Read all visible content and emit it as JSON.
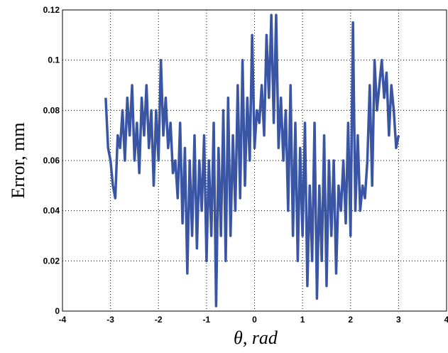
{
  "chart_data": {
    "type": "line",
    "xlabel": "θ, rad",
    "ylabel": "Error, mm",
    "xlim": [
      -4,
      4
    ],
    "xticks": [
      -4,
      -3,
      -2,
      -1,
      0,
      1,
      2,
      3,
      4
    ],
    "ylim": [
      0,
      0.12
    ],
    "yticks": [
      0,
      0.02,
      0.04,
      0.06,
      0.08,
      0.1,
      0.12
    ],
    "grid": true,
    "x": [
      -3.1,
      -3.05,
      -3,
      -2.95,
      -2.9,
      -2.85,
      -2.8,
      -2.75,
      -2.7,
      -2.65,
      -2.6,
      -2.55,
      -2.5,
      -2.45,
      -2.4,
      -2.35,
      -2.3,
      -2.25,
      -2.2,
      -2.15,
      -2.1,
      -2.05,
      -2,
      -1.95,
      -1.9,
      -1.85,
      -1.8,
      -1.75,
      -1.7,
      -1.65,
      -1.6,
      -1.55,
      -1.5,
      -1.45,
      -1.4,
      -1.35,
      -1.3,
      -1.25,
      -1.2,
      -1.15,
      -1.1,
      -1.05,
      -1,
      -0.95,
      -0.9,
      -0.85,
      -0.8,
      -0.75,
      -0.7,
      -0.65,
      -0.6,
      -0.55,
      -0.5,
      -0.45,
      -0.4,
      -0.35,
      -0.3,
      -0.25,
      -0.2,
      -0.15,
      -0.1,
      -0.05,
      0,
      0.05,
      0.1,
      0.15,
      0.2,
      0.25,
      0.3,
      0.35,
      0.4,
      0.45,
      0.5,
      0.55,
      0.6,
      0.65,
      0.7,
      0.75,
      0.8,
      0.85,
      0.9,
      0.95,
      1,
      1.05,
      1.1,
      1.15,
      1.2,
      1.25,
      1.3,
      1.35,
      1.4,
      1.45,
      1.5,
      1.55,
      1.6,
      1.65,
      1.7,
      1.75,
      1.8,
      1.85,
      1.9,
      1.95,
      2,
      2.05,
      2.1,
      2.15,
      2.2,
      2.25,
      2.3,
      2.35,
      2.4,
      2.45,
      2.5,
      2.55,
      2.6,
      2.65,
      2.7,
      2.75,
      2.8,
      2.85,
      2.9,
      2.95,
      3
    ],
    "series": [
      {
        "color": "#3a55a4",
        "values": [
          0.085,
          0.065,
          0.06,
          0.05,
          0.045,
          0.07,
          0.065,
          0.08,
          0.06,
          0.085,
          0.07,
          0.09,
          0.06,
          0.075,
          0.055,
          0.085,
          0.07,
          0.09,
          0.065,
          0.08,
          0.05,
          0.08,
          0.06,
          0.1,
          0.07,
          0.085,
          0.065,
          0.075,
          0.055,
          0.06,
          0.045,
          0.075,
          0.035,
          0.065,
          0.015,
          0.06,
          0.03,
          0.07,
          0.025,
          0.06,
          0.04,
          0.07,
          0.02,
          0.06,
          0.03,
          0.075,
          0.002,
          0.065,
          0.03,
          0.08,
          0.02,
          0.085,
          0.03,
          0.07,
          0.04,
          0.09,
          0.045,
          0.1,
          0.05,
          0.085,
          0.06,
          0.11,
          0.065,
          0.08,
          0.075,
          0.09,
          0.07,
          0.11,
          0.085,
          0.118,
          0.075,
          0.118,
          0.065,
          0.085,
          0.06,
          0.08,
          0.04,
          0.09,
          0.03,
          0.075,
          0.02,
          0.065,
          0.03,
          0.075,
          0.01,
          0.05,
          0.02,
          0.075,
          0.005,
          0.05,
          0.02,
          0.07,
          0.01,
          0.06,
          0.03,
          0.06,
          0.015,
          0.05,
          0.04,
          0.06,
          0.035,
          0.075,
          0.03,
          0.115,
          0.04,
          0.07,
          0.04,
          0.05,
          0.045,
          0.06,
          0.09,
          0.05,
          0.1,
          0.08,
          0.09,
          0.1,
          0.085,
          0.095,
          0.07,
          0.09,
          0.08,
          0.065,
          0.07
        ]
      }
    ]
  }
}
